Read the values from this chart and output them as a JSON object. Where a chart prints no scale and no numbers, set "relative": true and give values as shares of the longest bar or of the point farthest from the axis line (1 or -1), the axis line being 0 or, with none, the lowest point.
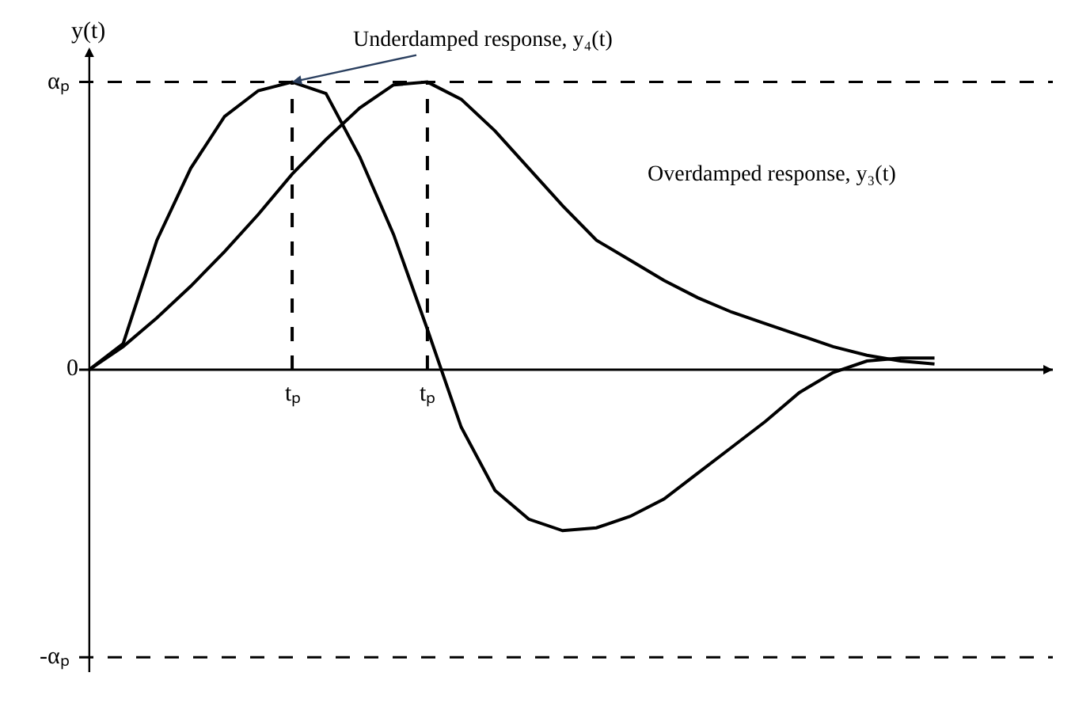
{
  "chart_data": {
    "type": "line",
    "ylabel": "y(t)",
    "relative": true,
    "categories": [
      null,
      null,
      null,
      null,
      null,
      null,
      null,
      null,
      null,
      null,
      null,
      null,
      null,
      null,
      null,
      null,
      null,
      null,
      null,
      null,
      null,
      null,
      null,
      null,
      null,
      null
    ],
    "series": [
      {
        "color": "#000000",
        "values": [
          0,
          0.09,
          0.45,
          0.7,
          0.88,
          0.97,
          1.0,
          0.96,
          0.74,
          0.47,
          0.14,
          -0.2,
          -0.42,
          -0.52,
          -0.56,
          -0.55,
          -0.51,
          -0.45,
          -0.36,
          -0.27,
          -0.18,
          -0.08,
          -0.01,
          0.03,
          0.04,
          0.04
        ]
      },
      {
        "color": "#000000",
        "values": [
          0,
          0.08,
          0.18,
          0.29,
          0.41,
          0.54,
          0.68,
          0.8,
          0.91,
          0.99,
          1.0,
          0.94,
          0.83,
          0.7,
          0.57,
          0.45,
          0.38,
          0.31,
          0.25,
          0.2,
          0.16,
          0.12,
          0.08,
          0.05,
          0.03,
          0.02
        ]
      }
    ],
    "ref_lines": [
      {
        "axis": "y",
        "value": 0,
        "line_style": "solid",
        "color": "#000000"
      },
      {
        "axis": "y",
        "value": 1,
        "label": "αₚ",
        "line_style": "dashed",
        "color": "#000000"
      },
      {
        "axis": "y",
        "value": -1,
        "label": "-αₚ",
        "line_style": "dashed",
        "color": "#000000"
      }
    ],
    "annotations": [
      "Underdamped response, y₄(t)",
      "Overdamped response, y₃(t)",
      "0",
      "tₚ",
      "tₚ"
    ],
    "marker": "none",
    "line_style": "solid"
  }
}
